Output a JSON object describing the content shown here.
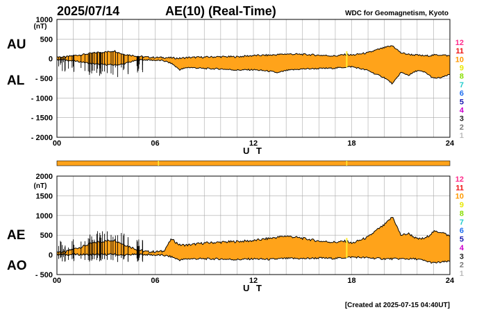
{
  "header": {
    "date": "2025/07/14",
    "title": "AE(10) (Real-Time)",
    "org": "WDC for Geomagnetism, Kyoto"
  },
  "footer": {
    "created": "[Created at 2025-07-15 04:40UT]"
  },
  "colors": {
    "fill": "#ffa31a",
    "line": "#000000",
    "highlight": "#ffee33",
    "grid": "#a8a8a8"
  },
  "station_legend": [
    {
      "label": "12",
      "color": "#ff2a8a"
    },
    {
      "label": "11",
      "color": "#ee1111"
    },
    {
      "label": "10",
      "color": "#ff9900"
    },
    {
      "label": "9",
      "color": "#e8e800"
    },
    {
      "label": "8",
      "color": "#88dd00"
    },
    {
      "label": "7",
      "color": "#22cccc"
    },
    {
      "label": "6",
      "color": "#1e6ef0"
    },
    {
      "label": "5",
      "color": "#1a1ab0"
    },
    {
      "label": "4",
      "color": "#cc00cc"
    },
    {
      "label": "3",
      "color": "#222222"
    },
    {
      "label": "2",
      "color": "#777777"
    },
    {
      "label": "1",
      "color": "#bbbbbb"
    }
  ],
  "chart_data": [
    {
      "type": "area",
      "panel": "AU/AL",
      "ylabels": {
        "upper": "AU",
        "lower": "AL"
      },
      "unit": "(nT)",
      "xlabel": "U T",
      "xlim": [
        0,
        24
      ],
      "ylim": [
        -2000,
        1000
      ],
      "xticks": [
        "00",
        "06",
        "12",
        "18",
        "24"
      ],
      "yticks": [
        "1000",
        "500",
        "0",
        "- 500",
        "- 1000",
        "- 1500",
        "- 2000"
      ],
      "ytick_values": [
        1000,
        500,
        0,
        -500,
        -1000,
        -1500,
        -2000
      ],
      "grid": true,
      "series": [
        {
          "role": "upper",
          "x": [
            0,
            0.5,
            1,
            1.5,
            2,
            2.5,
            3,
            3.5,
            4,
            4.5,
            5,
            5.5,
            6,
            6.5,
            7,
            7.5,
            8,
            9,
            10,
            11,
            12,
            13,
            14,
            15,
            16,
            17,
            17.7,
            18,
            19,
            19.5,
            20,
            20.5,
            21,
            21.5,
            22,
            22.5,
            23,
            23.5,
            24
          ],
          "values": [
            50,
            40,
            80,
            100,
            130,
            160,
            170,
            200,
            120,
            90,
            60,
            40,
            30,
            30,
            20,
            10,
            30,
            40,
            50,
            50,
            80,
            90,
            120,
            110,
            90,
            70,
            110,
            90,
            150,
            220,
            280,
            330,
            150,
            110,
            90,
            70,
            90,
            100,
            70
          ]
        },
        {
          "role": "lower",
          "x": [
            0,
            0.5,
            1,
            1.5,
            2,
            2.5,
            3,
            3.5,
            4,
            4.5,
            5,
            5.5,
            6,
            6.5,
            7,
            7.5,
            8,
            9,
            10,
            11,
            12,
            13,
            13.5,
            14,
            15,
            16,
            17,
            18,
            19,
            19.5,
            20,
            20.5,
            21,
            21.5,
            22,
            22.5,
            23,
            23.5,
            24
          ],
          "values": [
            -20,
            -30,
            -60,
            -80,
            -120,
            -140,
            -150,
            -160,
            -140,
            -80,
            -30,
            -30,
            -40,
            -50,
            -120,
            -280,
            -220,
            -250,
            -260,
            -290,
            -280,
            -320,
            -360,
            -300,
            -260,
            -250,
            -240,
            -200,
            -300,
            -400,
            -480,
            -640,
            -350,
            -420,
            -300,
            -350,
            -500,
            -480,
            -400
          ]
        }
      ]
    },
    {
      "type": "area",
      "panel": "AE/AO",
      "ylabels": {
        "upper": "AE",
        "lower": "AO"
      },
      "unit": "(nT)",
      "xlabel": "U T",
      "xlim": [
        0,
        24
      ],
      "ylim": [
        -500,
        2000
      ],
      "xticks": [
        "00",
        "06",
        "12",
        "18",
        "24"
      ],
      "yticks": [
        "2000",
        "1500",
        "1000",
        "500",
        "0",
        "- 500"
      ],
      "ytick_values": [
        2000,
        1500,
        1000,
        500,
        0,
        -500
      ],
      "grid": true,
      "series": [
        {
          "role": "AE",
          "x": [
            0,
            0.5,
            1,
            1.5,
            2,
            2.5,
            3,
            3.5,
            4,
            4.5,
            5,
            5.5,
            6,
            6.5,
            7,
            7.5,
            8,
            9,
            10,
            11,
            12,
            13,
            14,
            15,
            16,
            17,
            17.7,
            18,
            19,
            19.5,
            20,
            20.5,
            21,
            21.5,
            22,
            22.5,
            23,
            23.5,
            24
          ],
          "values": [
            80,
            70,
            150,
            200,
            280,
            330,
            350,
            380,
            280,
            200,
            120,
            80,
            80,
            90,
            400,
            250,
            250,
            300,
            320,
            340,
            360,
            420,
            480,
            420,
            350,
            320,
            350,
            290,
            450,
            620,
            760,
            970,
            500,
            540,
            400,
            420,
            590,
            580,
            470
          ]
        },
        {
          "role": "AO",
          "x": [
            0,
            0.5,
            1,
            1.5,
            2,
            2.5,
            3,
            3.5,
            4,
            4.5,
            5,
            5.5,
            6,
            6.5,
            7,
            7.5,
            8,
            9,
            10,
            11,
            12,
            13,
            14,
            15,
            16,
            17,
            18,
            19,
            20,
            21,
            22,
            23,
            24
          ],
          "values": [
            15,
            5,
            10,
            10,
            5,
            10,
            10,
            20,
            -10,
            5,
            15,
            5,
            -5,
            -10,
            -50,
            -130,
            -100,
            -100,
            -105,
            -120,
            -100,
            -115,
            -90,
            -95,
            -80,
            -90,
            -55,
            -75,
            -100,
            -100,
            -105,
            -205,
            -165
          ]
        }
      ]
    }
  ]
}
